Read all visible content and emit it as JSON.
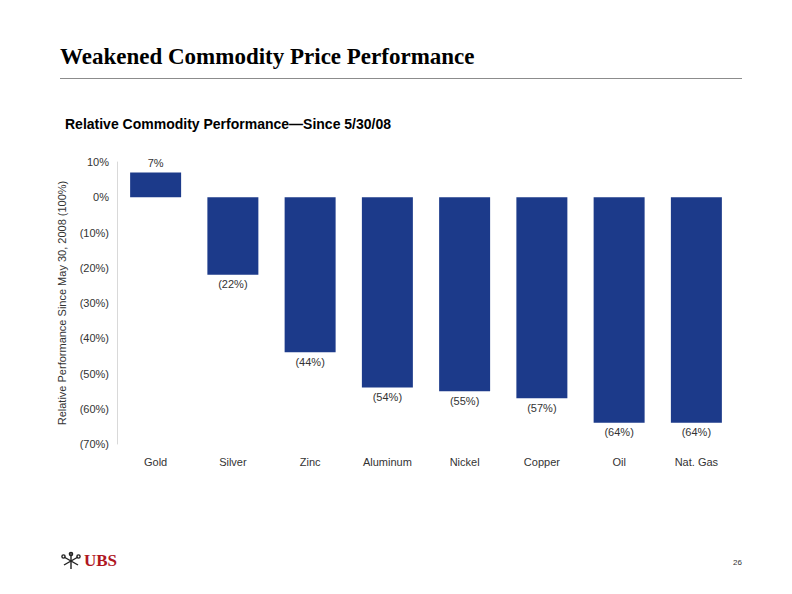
{
  "title": "Weakened Commodity Price Performance",
  "footer": {
    "logo": "UBS",
    "page_number": "26"
  },
  "chart_data": {
    "type": "bar",
    "title": "Relative Commodity Performance—Since 5/30/08",
    "ylabel": "Relative Performance Since May 30, 2008 (100%)",
    "categories": [
      "Gold",
      "Silver",
      "Zinc",
      "Aluminum",
      "Nickel",
      "Copper",
      "Oil",
      "Nat. Gas"
    ],
    "values": [
      7,
      -22,
      -44,
      -54,
      -55,
      -57,
      -64,
      -64
    ],
    "value_labels": [
      "7%",
      "(22%)",
      "(44%)",
      "(54%)",
      "(55%)",
      "(57%)",
      "(64%)",
      "(64%)"
    ],
    "color": "#1c3a8a",
    "ylim": [
      -70,
      10
    ],
    "yticks": [
      {
        "value": 10,
        "label": "10%"
      },
      {
        "value": 0,
        "label": "0%"
      },
      {
        "value": -10,
        "label": "(10%)"
      },
      {
        "value": -20,
        "label": "(20%)"
      },
      {
        "value": -30,
        "label": "(30%)"
      },
      {
        "value": -40,
        "label": "(40%)"
      },
      {
        "value": -50,
        "label": "(50%)"
      },
      {
        "value": -60,
        "label": "(60%)"
      },
      {
        "value": -70,
        "label": "(70%)"
      }
    ],
    "grid": false,
    "data_labels": true
  }
}
